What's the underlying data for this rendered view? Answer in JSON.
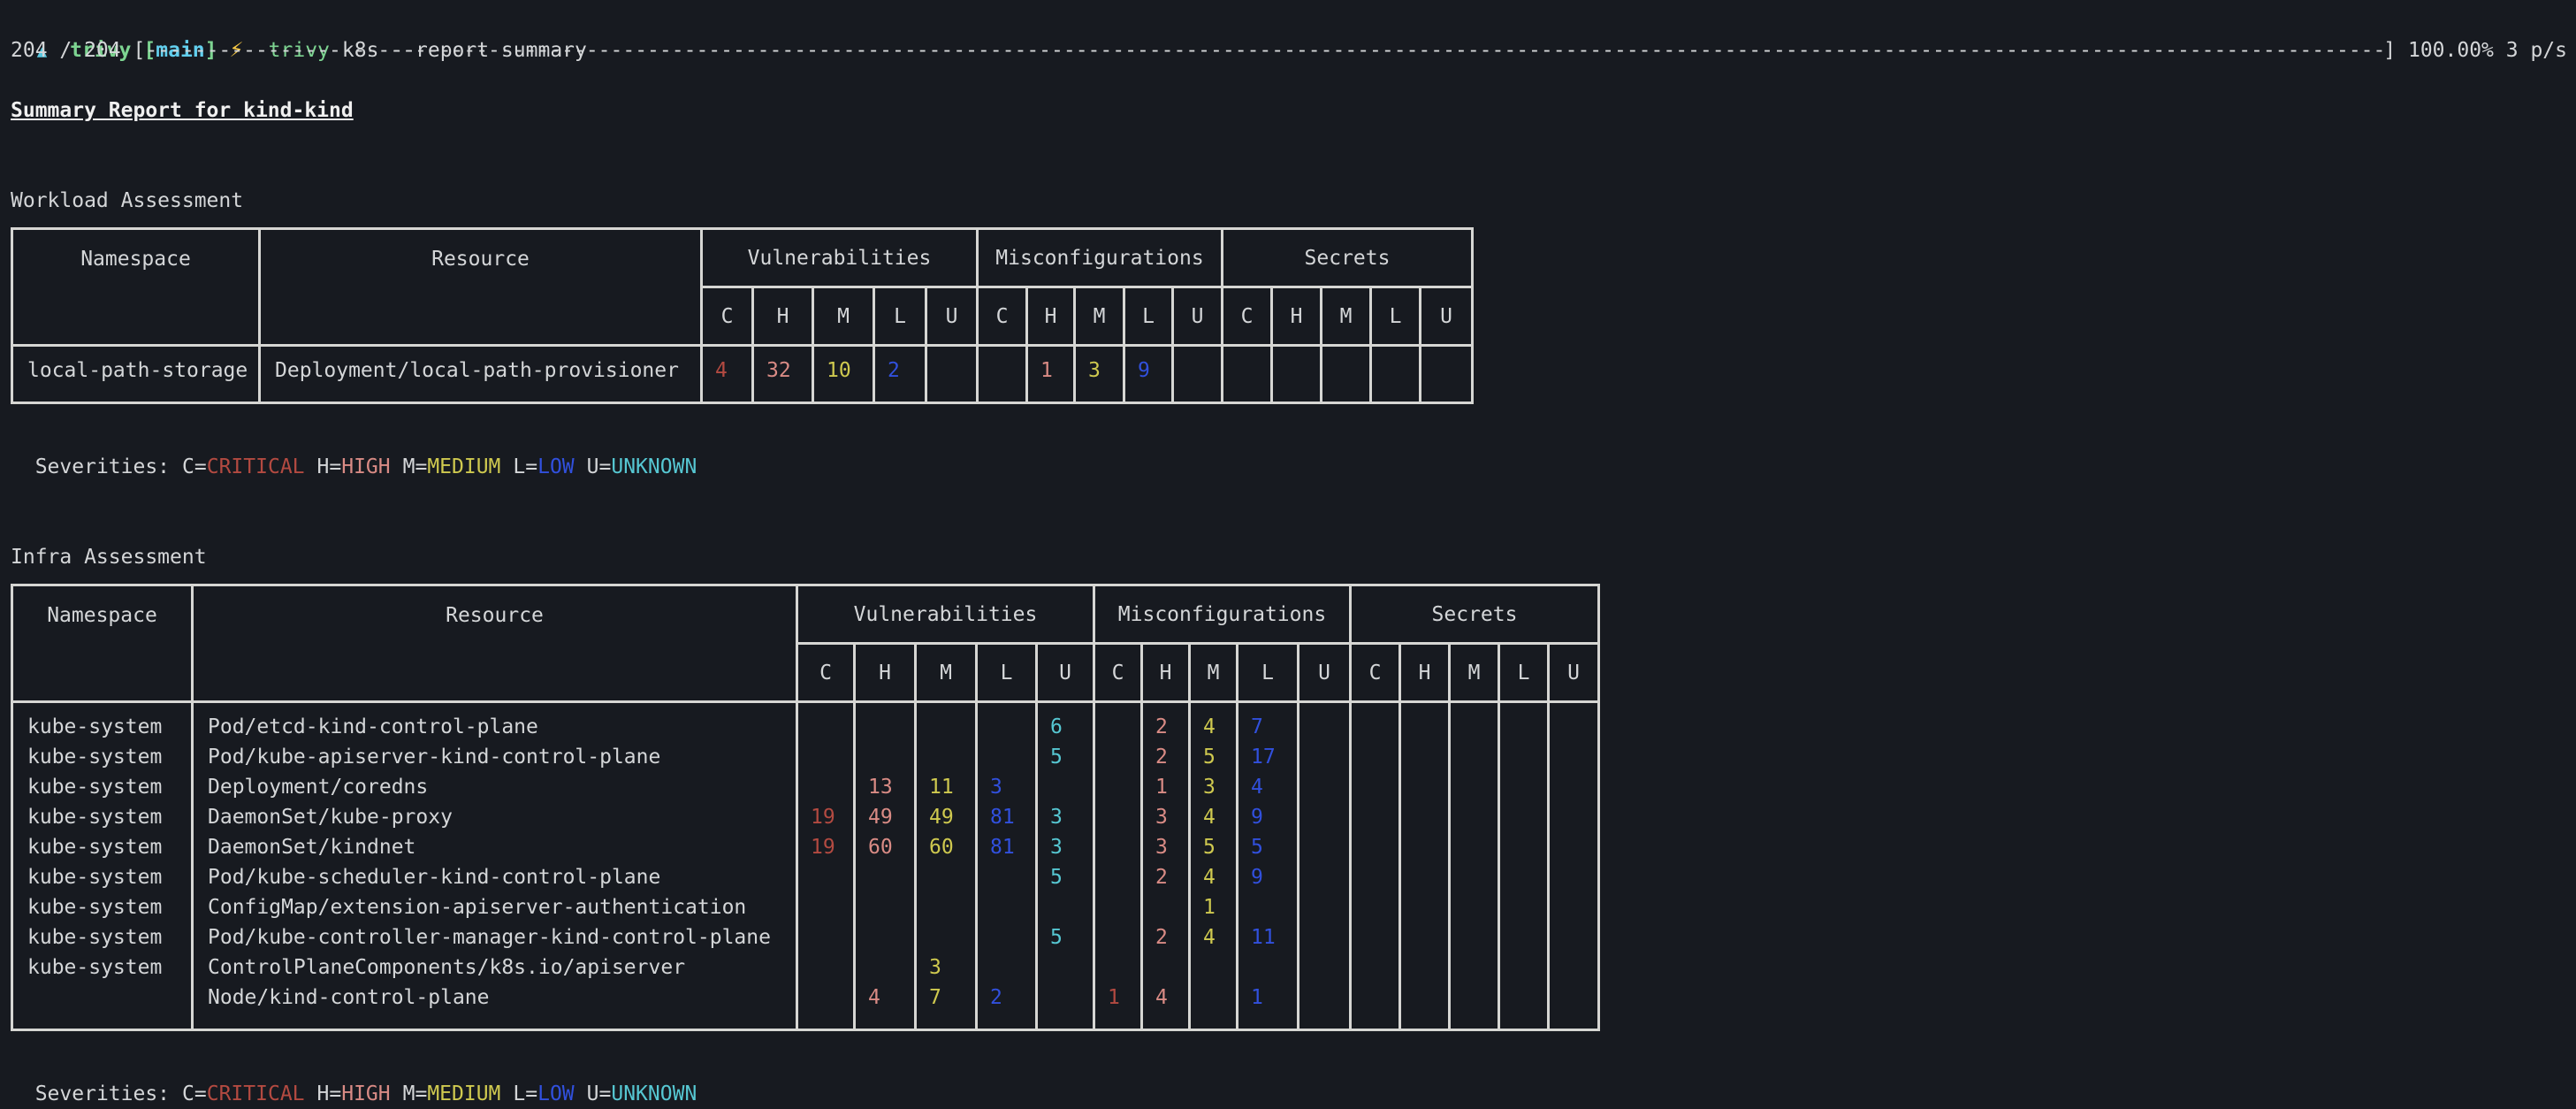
{
  "prompt": {
    "arrow": "▲",
    "dir": "trivy",
    "branch_open": "[",
    "branch": "main",
    "branch_close": "]",
    "bolt": "⚡",
    "command": "trivy",
    "args": "k8s --report summary"
  },
  "progress": {
    "prefix": "204 / 204 [",
    "bar": "----------------------------------------------------------------------------------------------------------------------------------------------------------------------------------------------",
    "suffix": "] 100.00% 3 p/s"
  },
  "report_title": "Summary Report for kind-kind",
  "legend": {
    "label": "Severities:",
    "items": [
      {
        "prefix": "C=",
        "name": "CRITICAL",
        "sev": "c"
      },
      {
        "prefix": "H=",
        "name": "HIGH",
        "sev": "h"
      },
      {
        "prefix": "M=",
        "name": "MEDIUM",
        "sev": "m"
      },
      {
        "prefix": "L=",
        "name": "LOW",
        "sev": "l"
      },
      {
        "prefix": "U=",
        "name": "UNKNOWN",
        "sev": "u"
      }
    ]
  },
  "workload": {
    "title": "Workload Assessment",
    "columns": {
      "namespace": "Namespace",
      "resource": "Resource",
      "groups": [
        "Vulnerabilities",
        "Misconfigurations",
        "Secrets"
      ],
      "severity": [
        "C",
        "H",
        "M",
        "L",
        "U"
      ]
    },
    "rows": [
      [
        "local-path-storage",
        "Deployment/local-path-provisioner",
        "4",
        "32",
        "10",
        "2",
        "",
        "",
        "1",
        "3",
        "9",
        "",
        "",
        "",
        "",
        "",
        ""
      ]
    ]
  },
  "infra": {
    "title": "Infra Assessment",
    "columns": {
      "namespace": "Namespace",
      "resource": "Resource",
      "groups": [
        "Vulnerabilities",
        "Misconfigurations",
        "Secrets"
      ],
      "severity": [
        "C",
        "H",
        "M",
        "L",
        "U"
      ]
    },
    "rows": [
      [
        "kube-system",
        "Pod/etcd-kind-control-plane",
        "",
        "",
        "",
        "",
        "6",
        "",
        "2",
        "4",
        "7",
        "",
        "",
        "",
        "",
        "",
        ""
      ],
      [
        "kube-system",
        "Pod/kube-apiserver-kind-control-plane",
        "",
        "",
        "",
        "",
        "5",
        "",
        "2",
        "5",
        "17",
        "",
        "",
        "",
        "",
        "",
        ""
      ],
      [
        "kube-system",
        "Deployment/coredns",
        "",
        "13",
        "11",
        "3",
        "",
        "",
        "1",
        "3",
        "4",
        "",
        "",
        "",
        "",
        "",
        ""
      ],
      [
        "kube-system",
        "DaemonSet/kube-proxy",
        "19",
        "49",
        "49",
        "81",
        "3",
        "",
        "3",
        "4",
        "9",
        "",
        "",
        "",
        "",
        "",
        ""
      ],
      [
        "kube-system",
        "DaemonSet/kindnet",
        "19",
        "60",
        "60",
        "81",
        "3",
        "",
        "3",
        "5",
        "5",
        "",
        "",
        "",
        "",
        "",
        ""
      ],
      [
        "kube-system",
        "Pod/kube-scheduler-kind-control-plane",
        "",
        "",
        "",
        "",
        "5",
        "",
        "2",
        "4",
        "9",
        "",
        "",
        "",
        "",
        "",
        ""
      ],
      [
        "kube-system",
        "ConfigMap/extension-apiserver-authentication",
        "",
        "",
        "",
        "",
        "",
        "",
        "",
        "1",
        "",
        "",
        "",
        "",
        "",
        "",
        ""
      ],
      [
        "kube-system",
        "Pod/kube-controller-manager-kind-control-plane",
        "",
        "",
        "",
        "",
        "5",
        "",
        "2",
        "4",
        "11",
        "",
        "",
        "",
        "",
        "",
        ""
      ],
      [
        "kube-system",
        "ControlPlaneComponents/k8s.io/apiserver",
        "",
        "",
        "3",
        "",
        "",
        "",
        "",
        "",
        "",
        "",
        "",
        "",
        "",
        "",
        ""
      ],
      [
        "",
        "Node/kind-control-plane",
        "",
        "4",
        "7",
        "2",
        "",
        "1",
        "4",
        "",
        "1",
        "",
        "",
        "",
        "",
        "",
        ""
      ]
    ]
  },
  "colors": {
    "bg": "#171a20",
    "text": "#d4d6d8",
    "bright": "#f0f0f0",
    "border": "#d6d6d3",
    "critical": "#b34a41",
    "high": "#d98b85",
    "medium": "#cfc94f",
    "low": "#3150dd",
    "unknown": "#56c7d2",
    "green": "#7dd491",
    "cyan": "#62cfee",
    "arrow": "#5ac8e0",
    "bolt": "#f5c744"
  }
}
